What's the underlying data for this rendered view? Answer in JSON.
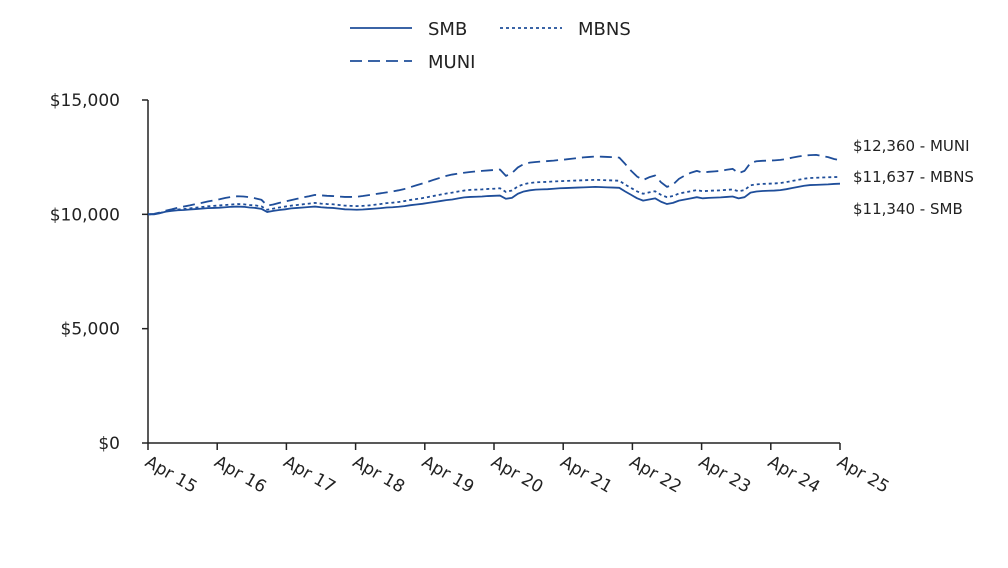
{
  "chart_data": {
    "type": "line",
    "title": "",
    "xlabel": "",
    "ylabel": "",
    "ylim": [
      0,
      15000
    ],
    "y_ticks": [
      {
        "value": 0,
        "label": "$0"
      },
      {
        "value": 5000,
        "label": "$5,000"
      },
      {
        "value": 10000,
        "label": "$10,000"
      },
      {
        "value": 15000,
        "label": "$15,000"
      }
    ],
    "x_ticks": [
      "Apr 15",
      "Apr 16",
      "Apr 17",
      "Apr 18",
      "Apr 19",
      "Apr 20",
      "Apr 21",
      "Apr 22",
      "Apr 23",
      "Apr 24",
      "Apr 25"
    ],
    "grid": false,
    "legend_position": "top-center",
    "color": "#1f4e9a",
    "series": [
      {
        "name": "SMB",
        "style": "solid",
        "end_label": "$11,340 - SMB",
        "values": [
          10000,
          10000,
          10050,
          10120,
          10150,
          10180,
          10190,
          10210,
          10230,
          10250,
          10270,
          10280,
          10290,
          10310,
          10330,
          10340,
          10330,
          10300,
          10280,
          10240,
          10100,
          10150,
          10190,
          10220,
          10260,
          10280,
          10300,
          10320,
          10340,
          10310,
          10290,
          10280,
          10250,
          10220,
          10210,
          10200,
          10210,
          10230,
          10250,
          10270,
          10300,
          10310,
          10330,
          10360,
          10400,
          10430,
          10460,
          10500,
          10540,
          10580,
          10620,
          10650,
          10700,
          10740,
          10760,
          10770,
          10780,
          10800,
          10810,
          10820,
          10680,
          10720,
          10900,
          11000,
          11050,
          11080,
          11090,
          11100,
          11120,
          11140,
          11150,
          11160,
          11170,
          11180,
          11190,
          11200,
          11190,
          11180,
          11170,
          11160,
          11000,
          10850,
          10700,
          10600,
          10650,
          10700,
          10550,
          10450,
          10500,
          10600,
          10650,
          10700,
          10750,
          10700,
          10720,
          10730,
          10740,
          10760,
          10780,
          10700,
          10750,
          10950,
          11000,
          11020,
          11030,
          11040,
          11060,
          11100,
          11150,
          11200,
          11250,
          11280,
          11290,
          11300,
          11310,
          11330,
          11340
        ]
      },
      {
        "name": "MBNS",
        "style": "dotted",
        "end_label": "$11,637 - MBNS",
        "values": [
          10000,
          10010,
          10060,
          10130,
          10170,
          10210,
          10230,
          10260,
          10290,
          10320,
          10350,
          10370,
          10390,
          10410,
          10430,
          10450,
          10440,
          10410,
          10390,
          10350,
          10200,
          10250,
          10300,
          10340,
          10380,
          10410,
          10440,
          10470,
          10500,
          10470,
          10450,
          10440,
          10410,
          10380,
          10370,
          10360,
          10370,
          10390,
          10420,
          10450,
          10490,
          10510,
          10540,
          10580,
          10630,
          10670,
          10710,
          10760,
          10810,
          10860,
          10910,
          10950,
          11000,
          11040,
          11070,
          11080,
          11090,
          11110,
          11120,
          11140,
          10980,
          11040,
          11220,
          11320,
          11370,
          11400,
          11410,
          11420,
          11440,
          11450,
          11460,
          11470,
          11480,
          11490,
          11500,
          11510,
          11500,
          11490,
          11480,
          11470,
          11300,
          11150,
          11000,
          10900,
          10960,
          11010,
          10850,
          10750,
          10800,
          10910,
          10960,
          11010,
          11060,
          11010,
          11030,
          11040,
          11050,
          11070,
          11090,
          11010,
          11060,
          11270,
          11310,
          11330,
          11340,
          11350,
          11370,
          11410,
          11460,
          11510,
          11560,
          11590,
          11600,
          11610,
          11620,
          11630,
          11637
        ]
      },
      {
        "name": "MUNI",
        "style": "dashed",
        "end_label": "$12,360 - MUNI",
        "values": [
          10000,
          10020,
          10080,
          10160,
          10220,
          10290,
          10340,
          10390,
          10450,
          10500,
          10560,
          10610,
          10660,
          10720,
          10760,
          10790,
          10780,
          10750,
          10700,
          10640,
          10380,
          10430,
          10500,
          10560,
          10620,
          10680,
          10740,
          10790,
          10850,
          10830,
          10810,
          10800,
          10780,
          10760,
          10760,
          10770,
          10800,
          10840,
          10880,
          10920,
          10960,
          11000,
          11050,
          11110,
          11190,
          11270,
          11350,
          11430,
          11520,
          11600,
          11680,
          11740,
          11780,
          11820,
          11850,
          11880,
          11900,
          11920,
          11940,
          11960,
          11680,
          11800,
          12050,
          12200,
          12260,
          12290,
          12310,
          12330,
          12350,
          12380,
          12400,
          12430,
          12460,
          12490,
          12510,
          12530,
          12520,
          12510,
          12500,
          12480,
          12200,
          11900,
          11650,
          11500,
          11620,
          11700,
          11400,
          11200,
          11300,
          11550,
          11700,
          11820,
          11900,
          11820,
          11860,
          11880,
          11900,
          11950,
          11990,
          11800,
          11900,
          12250,
          12320,
          12340,
          12350,
          12360,
          12380,
          12420,
          12480,
          12530,
          12570,
          12590,
          12600,
          12550,
          12500,
          12420,
          12360
        ]
      }
    ]
  }
}
